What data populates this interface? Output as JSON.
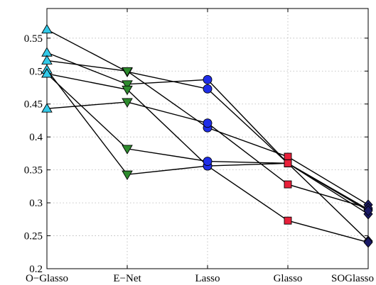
{
  "chart_data": {
    "type": "line",
    "categories": [
      "O−Glasso",
      "E−Net",
      "Lasso",
      "Glasso",
      "SOGlasso"
    ],
    "y_ticks": [
      "0.2",
      "0.25",
      "0.3",
      "0.35",
      "0.4",
      "0.45",
      "0.5",
      "0.55"
    ],
    "ylim": [
      0.2,
      0.595
    ],
    "grid": true,
    "markers": [
      "triangle-up",
      "triangle-down",
      "circle",
      "square",
      "diamond"
    ],
    "marker_colors": [
      "#33c9e8",
      "#2e8b2e",
      "#1f2ee8",
      "#e8203a",
      "#1a1a66"
    ],
    "series": [
      {
        "values": [
          0.563,
          0.499,
          0.473,
          0.36,
          0.242
        ]
      },
      {
        "values": [
          0.528,
          0.48,
          0.487,
          0.36,
          0.29
        ]
      },
      {
        "values": [
          0.516,
          0.5,
          0.414,
          0.37,
          0.297
        ]
      },
      {
        "values": [
          0.502,
          0.343,
          0.356,
          0.36,
          0.283
        ]
      },
      {
        "values": [
          0.496,
          0.472,
          0.356,
          0.273,
          0.24
        ]
      },
      {
        "values": [
          0.443,
          0.453,
          0.421,
          0.328,
          0.292
        ]
      },
      {
        "values": [
          0.496,
          0.382,
          0.363,
          0.36,
          0.288
        ]
      }
    ]
  }
}
